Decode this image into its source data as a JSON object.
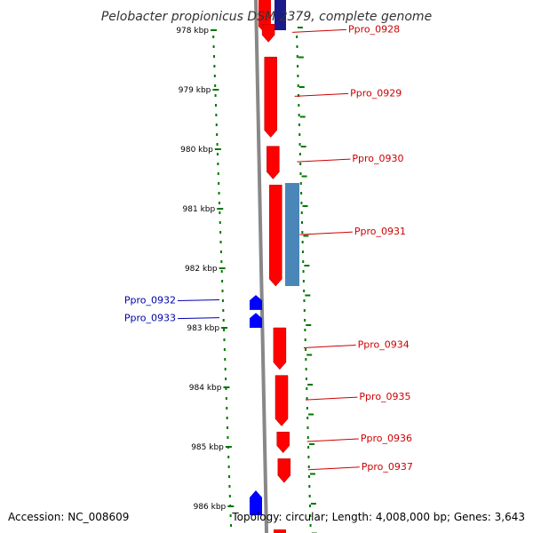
{
  "title": "Pelobacter propionicus DSM 2379, complete genome",
  "accession": "Accession: NC_008609",
  "summary": "Topology: circular; Length: 4,008,000 bp; Genes: 3,643",
  "ticks": [
    "978 kbp",
    "979 kbp",
    "980 kbp",
    "981 kbp",
    "982 kbp",
    "983 kbp",
    "984 kbp",
    "985 kbp",
    "986 kbp"
  ],
  "genes_forward": [
    {
      "label": "Ppro_0928",
      "start_kbp": 977.9,
      "end_kbp": 978.2
    },
    {
      "label": "Ppro_0929",
      "start_kbp": 978.45,
      "end_kbp": 979.8
    },
    {
      "label": "Ppro_0930",
      "start_kbp": 979.95,
      "end_kbp": 980.5
    },
    {
      "label": "Ppro_0931",
      "start_kbp": 980.6,
      "end_kbp": 982.3
    },
    {
      "label": "Ppro_0934",
      "start_kbp": 983.0,
      "end_kbp": 983.7
    },
    {
      "label": "Ppro_0935",
      "start_kbp": 983.8,
      "end_kbp": 984.65
    },
    {
      "label": "Ppro_0936",
      "start_kbp": 984.75,
      "end_kbp": 985.1
    },
    {
      "label": "Ppro_0937",
      "start_kbp": 985.2,
      "end_kbp": 985.6
    }
  ],
  "genes_reverse": [
    {
      "label": "Ppro_0932",
      "start_kbp": 982.45,
      "end_kbp": 982.7
    },
    {
      "label": "Ppro_0933",
      "start_kbp": 982.75,
      "end_kbp": 983.0
    }
  ],
  "colors": {
    "forward_gene": "#ff0000",
    "reverse_gene": "#0000ff",
    "feature_bar": "#4a86b8",
    "backbone": "#888888",
    "tick": "#007700",
    "label_forward": "#cc0000",
    "label_reverse": "#0000aa"
  }
}
